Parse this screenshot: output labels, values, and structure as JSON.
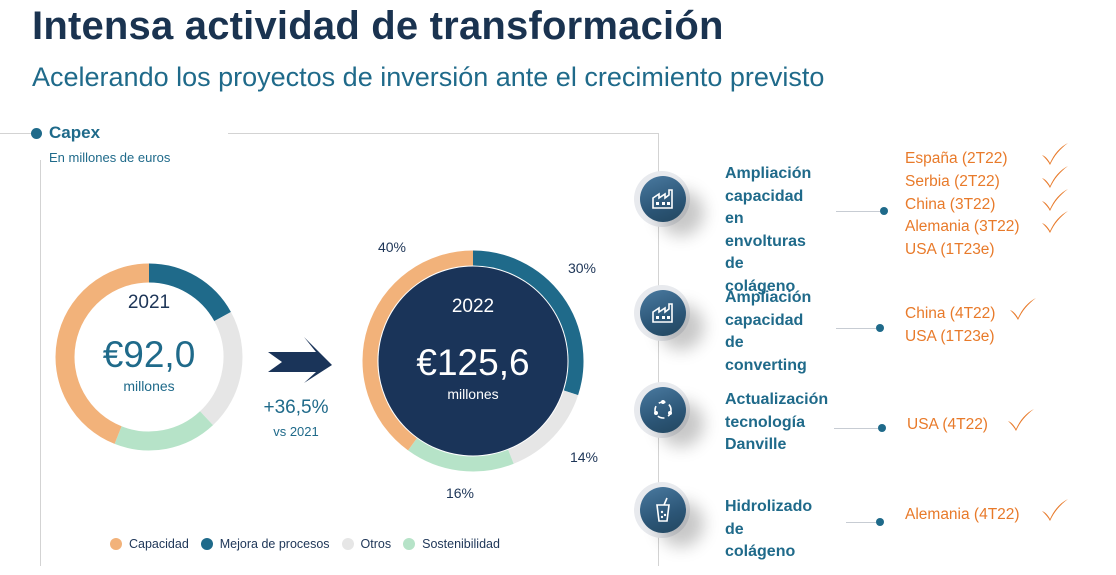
{
  "header": {
    "title": "Intensa actividad de transformación",
    "subtitle": "Acelerando los proyectos de inversión ante el crecimiento previsto"
  },
  "capex": {
    "title": "Capex",
    "subtitle": "En millones de euros",
    "growth": "+36,5%",
    "growth_note": "vs 2021"
  },
  "colors": {
    "capacidad": "#f2b27a",
    "mejora": "#1f6a8a",
    "otros": "#e6e6e6",
    "sostenibilidad": "#b6e3c8",
    "center2022": "#1a3459",
    "accent": "#e87a2a"
  },
  "chart_data": [
    {
      "type": "pie",
      "year": "2021",
      "total_label": "€92,0",
      "unit": "millones",
      "categories": [
        "Capacidad",
        "Mejora de procesos",
        "Otros",
        "Sostenibilidad"
      ],
      "values": [
        44,
        17,
        21,
        18
      ],
      "data_labels": []
    },
    {
      "type": "pie",
      "year": "2022",
      "total_label": "€125,6",
      "unit": "millones",
      "categories": [
        "Capacidad",
        "Mejora de procesos",
        "Otros",
        "Sostenibilidad"
      ],
      "values": [
        40,
        30,
        14,
        16
      ],
      "data_labels": [
        "40%",
        "30%",
        "14%",
        "16%"
      ]
    }
  ],
  "legend": [
    {
      "label": "Capacidad",
      "color": "#f2b27a"
    },
    {
      "label": "Mejora de procesos",
      "color": "#1f6a8a"
    },
    {
      "label": "Otros",
      "color": "#e6e6e6"
    },
    {
      "label": "Sostenibilidad",
      "color": "#b6e3c8"
    }
  ],
  "projects": [
    {
      "icon": "factory-icon",
      "label_lines": [
        "Ampliación",
        "capacidad en",
        "envolturas de",
        "colágeno"
      ],
      "locations": [
        "España (2T22)",
        "Serbia (2T22)",
        "China (3T22)",
        "Alemania (3T22)",
        "USA (1T23e)"
      ],
      "checked": 4
    },
    {
      "icon": "factory-icon",
      "label_lines": [
        "Ampliación",
        "capacidad de",
        "converting"
      ],
      "locations": [
        "China (4T22)",
        "USA (1T23e)"
      ],
      "checked": 1
    },
    {
      "icon": "refresh-cycle-icon",
      "label_lines": [
        "Actualización",
        "tecnología",
        "Danville"
      ],
      "locations": [
        "USA (4T22)"
      ],
      "checked": 1
    },
    {
      "icon": "drink-cup-icon",
      "label_lines": [
        "Hidrolizado de",
        "colágeno"
      ],
      "locations": [
        "Alemania (4T22)"
      ],
      "checked": 1
    }
  ]
}
